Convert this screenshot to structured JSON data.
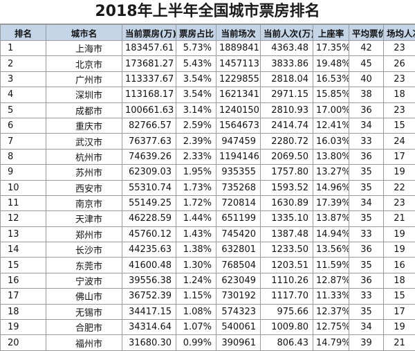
{
  "title": "2018年上半年全国城市票房排名",
  "columns": [
    "排名",
    "城市名",
    "当前票房(万)",
    "票房占比",
    "当前场次",
    "当前人次(万)",
    "上座率",
    "平均票价",
    "场均人次"
  ],
  "rows": [
    [
      "1",
      "上海市",
      "183457.61",
      "5.73%",
      "1889841",
      "4363.48",
      "17.35%",
      "42",
      "23"
    ],
    [
      "2",
      "北京市",
      "173681.27",
      "5.43%",
      "1457113",
      "3833.86",
      "19.48%",
      "45",
      "26"
    ],
    [
      "3",
      "广州市",
      "113337.67",
      "3.54%",
      "1229855",
      "2818.04",
      "16.53%",
      "40",
      "23"
    ],
    [
      "4",
      "深圳市",
      "113168.17",
      "3.54%",
      "1621341",
      "2971.15",
      "15.85%",
      "38",
      "18"
    ],
    [
      "5",
      "成都市",
      "100661.63",
      "3.14%",
      "1240150",
      "2810.93",
      "17.00%",
      "36",
      "23"
    ],
    [
      "6",
      "重庆市",
      "82766.57",
      "2.59%",
      "1564673",
      "2414.74",
      "12.41%",
      "34",
      "15"
    ],
    [
      "7",
      "武汉市",
      "76377.63",
      "2.39%",
      "947459",
      "2280.72",
      "16.03%",
      "33",
      "24"
    ],
    [
      "8",
      "杭州市",
      "74639.26",
      "2.33%",
      "1194146",
      "2069.50",
      "13.80%",
      "36",
      "17"
    ],
    [
      "9",
      "苏州市",
      "62309.03",
      "1.95%",
      "935355",
      "1757.80",
      "13.27%",
      "35",
      "19"
    ],
    [
      "10",
      "西安市",
      "55310.74",
      "1.73%",
      "735268",
      "1593.52",
      "14.96%",
      "35",
      "22"
    ],
    [
      "11",
      "南京市",
      "55149.25",
      "1.72%",
      "720814",
      "1630.89",
      "17.39%",
      "34",
      "23"
    ],
    [
      "12",
      "天津市",
      "46228.59",
      "1.44%",
      "651199",
      "1335.10",
      "13.87%",
      "35",
      "21"
    ],
    [
      "13",
      "郑州市",
      "45760.12",
      "1.43%",
      "745420",
      "1387.48",
      "14.94%",
      "33",
      "19"
    ],
    [
      "14",
      "长沙市",
      "44235.63",
      "1.38%",
      "632801",
      "1233.50",
      "13.56%",
      "36",
      "19"
    ],
    [
      "15",
      "东莞市",
      "41600.48",
      "1.30%",
      "768504",
      "1203.51",
      "11.59%",
      "35",
      "16"
    ],
    [
      "16",
      "宁波市",
      "39556.38",
      "1.24%",
      "623049",
      "1110.26",
      "12.87%",
      "36",
      "18"
    ],
    [
      "17",
      "佛山市",
      "36752.39",
      "1.15%",
      "730192",
      "1117.70",
      "11.33%",
      "33",
      "15"
    ],
    [
      "18",
      "无锡市",
      "34417.15",
      "1.08%",
      "574323",
      "975.66",
      "12.37%",
      "35",
      "17"
    ],
    [
      "19",
      "合肥市",
      "34314.64",
      "1.07%",
      "540061",
      "1009.80",
      "12.75%",
      "34",
      "19"
    ],
    [
      "20",
      "福州市",
      "31680.30",
      "0.99%",
      "390961",
      "806.43",
      "14.79%",
      "39",
      "21"
    ]
  ]
}
